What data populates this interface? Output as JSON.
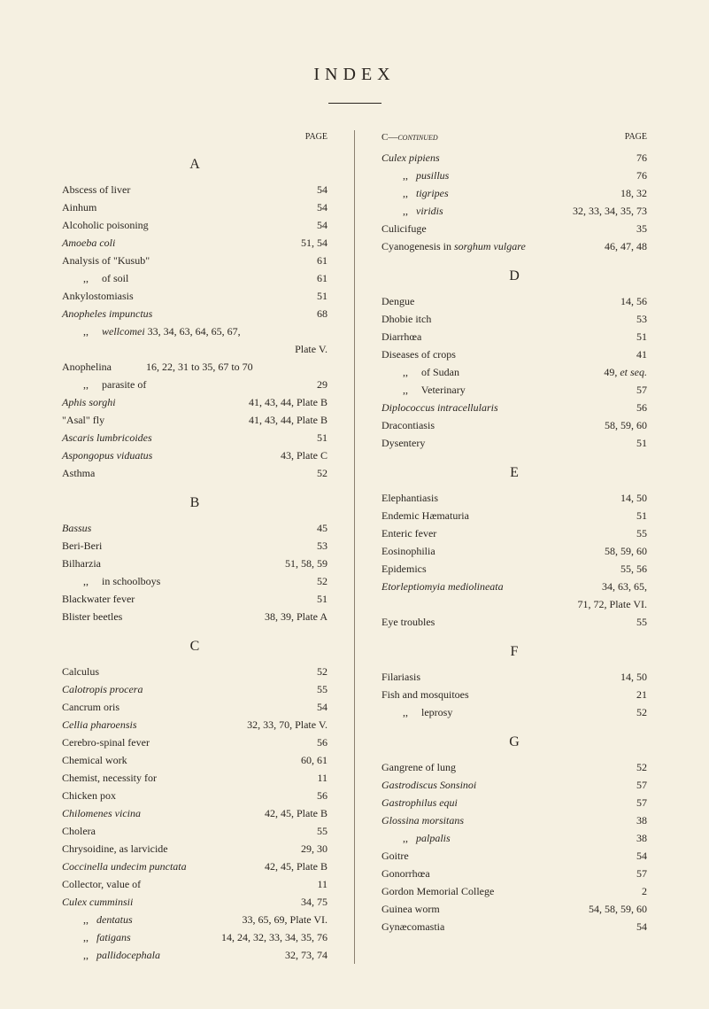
{
  "title": "INDEX",
  "page_label": "PAGE",
  "sections": {
    "left": [
      {
        "letter": "A",
        "show_page_label": true,
        "entries": [
          {
            "label": "Abscess of liver",
            "page": "54"
          },
          {
            "label": "Ainhum",
            "page": "54"
          },
          {
            "label": "Alcoholic poisoning",
            "page": "54"
          },
          {
            "label": "Amoeba coli",
            "italic": true,
            "page": "51, 54"
          },
          {
            "label": "Analysis of \"Kusub\"",
            "page": "61"
          },
          {
            "label": "of soil",
            "indent": true,
            "prefix": ",,     ",
            "page": "61"
          },
          {
            "label": "Ankylostomiasis",
            "page": "51"
          },
          {
            "label": "Anopheles impunctus",
            "italic": true,
            "page": "68"
          },
          {
            "label": "wellcomei 33, 34, 63, 64, 65, 67,",
            "italic_part": "wellcomei",
            "indent": true,
            "prefix": ",,     ",
            "page": ""
          },
          {
            "label": "",
            "page": "Plate V."
          },
          {
            "label": "Anophelina             16, 22, 31 to 35, 67 to 70",
            "page": ""
          },
          {
            "label": "parasite of",
            "indent": true,
            "prefix": ",,     ",
            "page": "29"
          },
          {
            "label": "Aphis sorghi",
            "italic": true,
            "page": "41, 43, 44, Plate B"
          },
          {
            "label": "\"Asal\" fly",
            "page": "41, 43, 44, Plate B"
          },
          {
            "label": "Ascaris lumbricoides",
            "italic": true,
            "page": "51"
          },
          {
            "label": "Aspongopus viduatus",
            "italic": true,
            "page": "43, Plate C"
          },
          {
            "label": "Asthma",
            "page": "52"
          }
        ]
      },
      {
        "letter": "B",
        "entries": [
          {
            "label": "Bassus",
            "italic": true,
            "page": "45"
          },
          {
            "label": "Beri-Beri",
            "page": "53"
          },
          {
            "label": "Bilharzia",
            "page": "51, 58, 59"
          },
          {
            "label": "in schoolboys",
            "indent": true,
            "prefix": ",,     ",
            "page": "52"
          },
          {
            "label": "Blackwater fever",
            "page": "51"
          },
          {
            "label": "Blister beetles",
            "page": "38, 39, Plate A"
          }
        ]
      },
      {
        "letter": "C",
        "entries": [
          {
            "label": "Calculus",
            "page": "52"
          },
          {
            "label": "Calotropis procera",
            "italic": true,
            "page": "55"
          },
          {
            "label": "Cancrum oris",
            "page": "54"
          },
          {
            "label": "Cellia pharoensis",
            "italic": true,
            "page": "32, 33, 70, Plate V."
          },
          {
            "label": "Cerebro-spinal fever",
            "page": "56"
          },
          {
            "label": "Chemical work",
            "page": "60, 61"
          },
          {
            "label": "Chemist, necessity for",
            "page": "11"
          },
          {
            "label": "Chicken pox",
            "page": "56"
          },
          {
            "label": "Chilomenes vicina",
            "italic": true,
            "page": "42, 45, Plate B"
          },
          {
            "label": "Cholera",
            "page": "55"
          },
          {
            "label": "Chrysoidine, as larvicide",
            "page": "29, 30"
          },
          {
            "label": "Coccinella undecim punctata",
            "italic": true,
            "page": "42, 45, Plate B"
          },
          {
            "label": "Collector, value of",
            "page": "11"
          },
          {
            "label": "Culex cumminsii",
            "italic": true,
            "page": "34, 75"
          },
          {
            "label": "dentatus",
            "italic": true,
            "indent": true,
            "prefix": ",,   ",
            "page": "33, 65, 69, Plate VI."
          },
          {
            "label": "fatigans",
            "italic": true,
            "indent": true,
            "prefix": ",,   ",
            "page": "14, 24, 32, 33, 34, 35, 76"
          },
          {
            "label": "pallidocephala",
            "italic": true,
            "indent": true,
            "prefix": ",,   ",
            "page": "32, 73, 74"
          }
        ]
      }
    ],
    "right": [
      {
        "letter": "",
        "header": "C—continued",
        "show_page_label": true,
        "entries": [
          {
            "label": "Culex pipiens",
            "italic": true,
            "page": "76"
          },
          {
            "label": "pusillus",
            "italic": true,
            "indent": true,
            "prefix": ",,   ",
            "page": "76"
          },
          {
            "label": "tigripes",
            "italic": true,
            "indent": true,
            "prefix": ",,   ",
            "page": "18, 32"
          },
          {
            "label": "viridis",
            "italic": true,
            "indent": true,
            "prefix": ",,   ",
            "page": "32, 33, 34, 35, 73"
          },
          {
            "label": "Culicifuge",
            "page": "35"
          },
          {
            "label": "Cyanogenesis in sorghum vulgare",
            "italic_part": "sorghum vulgare",
            "page": "46, 47, 48"
          }
        ]
      },
      {
        "letter": "D",
        "entries": [
          {
            "label": "Dengue",
            "page": "14, 56"
          },
          {
            "label": "Dhobie itch",
            "page": "53"
          },
          {
            "label": "Diarrhœa",
            "page": "51"
          },
          {
            "label": "Diseases of crops",
            "page": "41"
          },
          {
            "label": "of Sudan",
            "indent": true,
            "prefix": ",,     ",
            "page": "49, et seq.",
            "italic_page": "et seq."
          },
          {
            "label": "Veterinary",
            "indent": true,
            "prefix": ",,     ",
            "page": "57"
          },
          {
            "label": "Diplococcus intracellularis",
            "italic": true,
            "page": "56"
          },
          {
            "label": "Dracontiasis",
            "page": "58, 59, 60"
          },
          {
            "label": "Dysentery",
            "page": "51"
          }
        ]
      },
      {
        "letter": "E",
        "entries": [
          {
            "label": "Elephantiasis",
            "page": "14, 50"
          },
          {
            "label": "Endemic Hæmaturia",
            "page": "51"
          },
          {
            "label": "Enteric fever",
            "page": "55"
          },
          {
            "label": "Eosinophilia",
            "page": "58, 59, 60"
          },
          {
            "label": "Epidemics",
            "page": "55, 56"
          },
          {
            "label": "Etorleptiomyia mediolineata",
            "italic": true,
            "page": "34, 63, 65,"
          },
          {
            "label": "",
            "page": "71, 72, Plate VI."
          },
          {
            "label": "Eye troubles",
            "page": "55"
          }
        ]
      },
      {
        "letter": "F",
        "entries": [
          {
            "label": "Filariasis",
            "page": "14, 50"
          },
          {
            "label": "Fish and mosquitoes",
            "page": "21"
          },
          {
            "label": "leprosy",
            "indent": true,
            "prefix": ",,     ",
            "page": "52"
          }
        ]
      },
      {
        "letter": "G",
        "entries": [
          {
            "label": "Gangrene of lung",
            "page": "52"
          },
          {
            "label": "Gastrodiscus Sonsinoi",
            "italic": true,
            "page": "57"
          },
          {
            "label": "Gastrophilus equi",
            "italic": true,
            "page": "57"
          },
          {
            "label": "Glossina morsitans",
            "italic": true,
            "page": "38"
          },
          {
            "label": "palpalis",
            "italic": true,
            "indent": true,
            "prefix": ",,   ",
            "page": "38"
          },
          {
            "label": "Goitre",
            "page": "54"
          },
          {
            "label": "Gonorrhœa",
            "page": "57"
          },
          {
            "label": "Gordon Memorial College",
            "page": "2"
          },
          {
            "label": "Guinea worm",
            "page": "54, 58, 59, 60"
          },
          {
            "label": "Gynæcomastia",
            "page": "54"
          }
        ]
      }
    ]
  }
}
